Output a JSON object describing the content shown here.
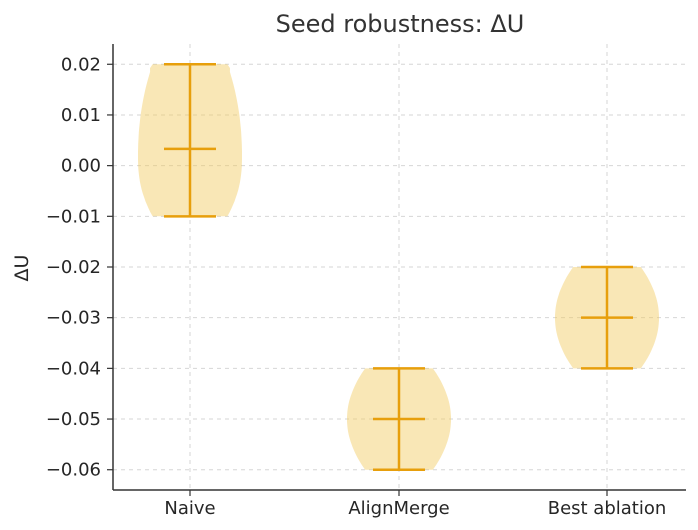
{
  "chart_data": {
    "type": "violin",
    "title": "Seed robustness: ΔU",
    "ylabel": "ΔU",
    "xlabel": "",
    "categories": [
      "Naive",
      "AlignMerge",
      "Best ablation"
    ],
    "series": [
      {
        "category": "Naive",
        "min": -0.01,
        "max": 0.02,
        "mean": 0.0033
      },
      {
        "category": "AlignMerge",
        "min": -0.06,
        "max": -0.04,
        "mean": -0.05
      },
      {
        "category": "Best ablation",
        "min": -0.04,
        "max": -0.02,
        "mean": -0.03
      }
    ],
    "yticks": [
      0.02,
      0.01,
      0.0,
      -0.01,
      -0.02,
      -0.03,
      -0.04,
      -0.05,
      -0.06
    ],
    "ytick_labels": [
      "0.02",
      "0.01",
      "0.00",
      "−0.01",
      "−0.02",
      "−0.03",
      "−0.04",
      "−0.05",
      "−0.06"
    ],
    "ylim": [
      -0.064,
      0.024
    ],
    "grid": true,
    "colors": {
      "violin_fill": "#f2c95d",
      "line": "#e79f0c"
    }
  }
}
